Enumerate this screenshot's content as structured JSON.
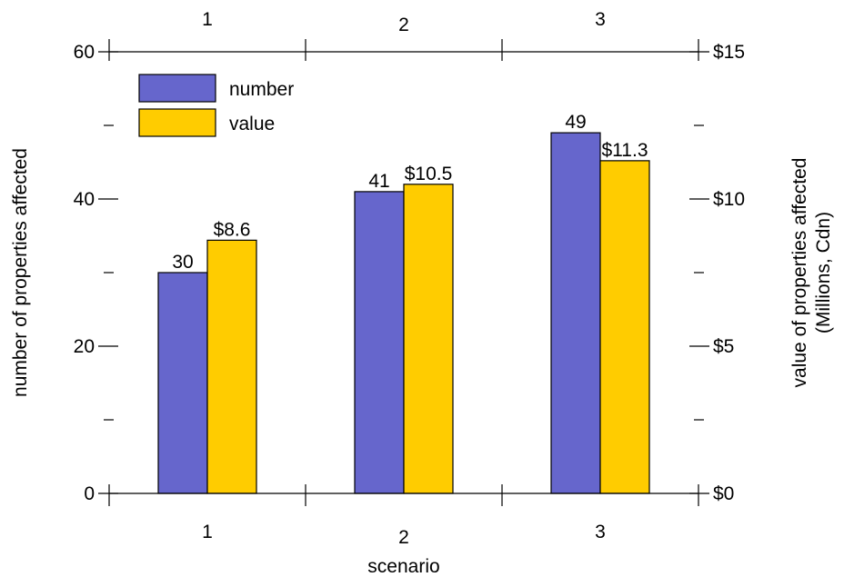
{
  "chart_data": {
    "type": "bar",
    "categories": [
      "1",
      "2",
      "3"
    ],
    "xlabel": "scenario",
    "ylabel": "number of properties affected",
    "y2label_lines": [
      "value of properties affected",
      "(Millions, Cdn)"
    ],
    "ylim": [
      0,
      60
    ],
    "y2lim": [
      0,
      15
    ],
    "yticks": [
      0,
      20,
      40,
      60
    ],
    "yticks_labels": [
      "0",
      "20",
      "40",
      "60"
    ],
    "y2ticks": [
      0,
      5,
      10,
      15
    ],
    "y2ticks_labels": [
      "$0",
      "$5",
      "$10",
      "$15"
    ],
    "legend": "top-left",
    "grid": false,
    "series": [
      {
        "name": "number",
        "axis": "left",
        "values": [
          30,
          41,
          49
        ],
        "labels": [
          "30",
          "41",
          "49"
        ],
        "color": "#6666cc"
      },
      {
        "name": "value",
        "axis": "right",
        "values": [
          8.6,
          10.5,
          11.3
        ],
        "labels": [
          "$8.6",
          "$10.5",
          "$11.3"
        ],
        "color": "#ffcc00"
      }
    ]
  }
}
